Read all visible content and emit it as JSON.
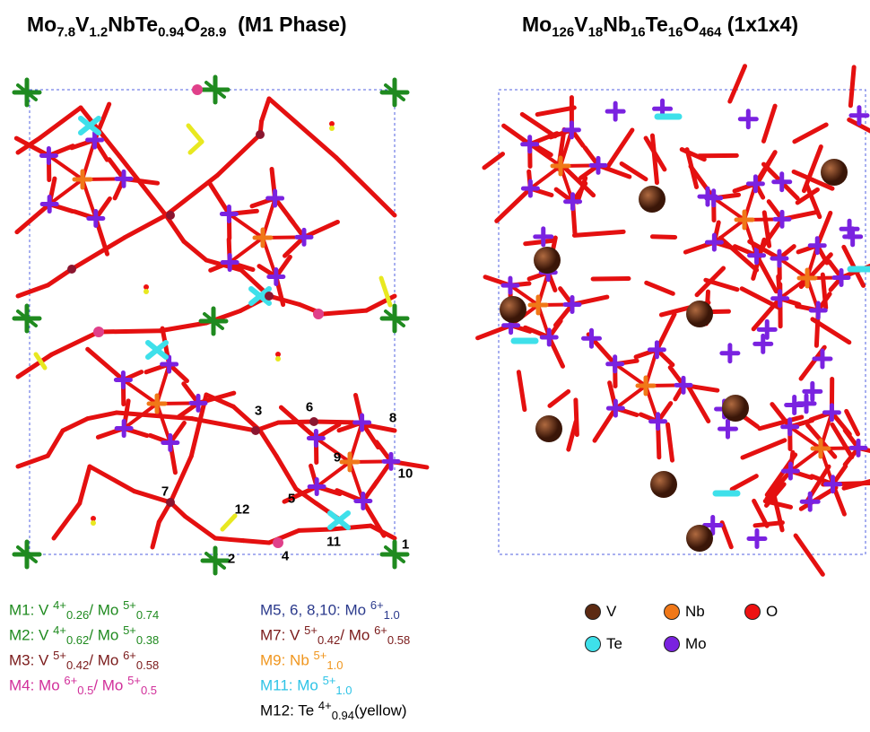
{
  "panels": [
    {
      "title": [
        {
          "text": "Mo"
        },
        {
          "sub": "7.8"
        },
        {
          "text": "V"
        },
        {
          "sub": "1.2"
        },
        {
          "text": "NbTe"
        },
        {
          "sub": "0.94"
        },
        {
          "text": "O"
        },
        {
          "sub": "28.9"
        },
        {
          "text": "  (M1 Phase)"
        }
      ],
      "site_labels": [
        "1",
        "2",
        "3",
        "4",
        "5",
        "6",
        "7",
        "8",
        "9",
        "10",
        "11",
        "12"
      ]
    },
    {
      "title": [
        {
          "text": "Mo"
        },
        {
          "sub": "126"
        },
        {
          "text": "V"
        },
        {
          "sub": "18"
        },
        {
          "text": "Nb"
        },
        {
          "sub": "16"
        },
        {
          "text": "Te"
        },
        {
          "sub": "16"
        },
        {
          "text": "O"
        },
        {
          "sub": "464"
        },
        {
          "text": " (1x1x4)"
        }
      ]
    }
  ],
  "site_legend": [
    [
      {
        "color": "#1f8a1f",
        "parts": [
          {
            "text": "M1: V "
          },
          {
            "sup": "4+"
          },
          {
            "sub": "0.26"
          },
          {
            "text": "/ Mo "
          },
          {
            "sup": "5+"
          },
          {
            "sub": "0.74"
          }
        ]
      },
      {
        "color": "#1f8a1f",
        "parts": [
          {
            "text": "M2: V "
          },
          {
            "sup": "4+"
          },
          {
            "sub": "0.62"
          },
          {
            "text": "/ Mo "
          },
          {
            "sup": "5+"
          },
          {
            "sub": "0.38"
          }
        ]
      },
      {
        "color": "#7a1a1a",
        "parts": [
          {
            "text": "M3: V "
          },
          {
            "sup": "5+"
          },
          {
            "sub": "0.42"
          },
          {
            "text": "/ Mo "
          },
          {
            "sup": "6+"
          },
          {
            "sub": "0.58"
          }
        ]
      },
      {
        "color": "#d12f9a",
        "parts": [
          {
            "text": "M4: Mo "
          },
          {
            "sup": "6+"
          },
          {
            "sub": "0.5"
          },
          {
            "text": "/ Mo "
          },
          {
            "sup": "5+"
          },
          {
            "sub": "0.5"
          }
        ]
      }
    ],
    [
      {
        "color": "#2b3a8c",
        "parts": [
          {
            "text": "M5, 6, 8,10: Mo "
          },
          {
            "sup": "6+"
          },
          {
            "sub": "1.0"
          }
        ]
      },
      {
        "color": "#7a1a1a",
        "parts": [
          {
            "text": "M7: V "
          },
          {
            "sup": "5+"
          },
          {
            "sub": "0.42"
          },
          {
            "text": "/ Mo "
          },
          {
            "sup": "6+"
          },
          {
            "sub": "0.58"
          }
        ]
      },
      {
        "color": "#f0961e",
        "parts": [
          {
            "text": "M9: Nb "
          },
          {
            "sup": "5+"
          },
          {
            "sub": "1.0"
          }
        ]
      },
      {
        "color": "#2ec3e6",
        "parts": [
          {
            "text": "M11: Mo "
          },
          {
            "sup": "5+"
          },
          {
            "sub": "1.0"
          }
        ]
      },
      {
        "color": "#000000",
        "parts": [
          {
            "text": "M12: Te "
          },
          {
            "sup": "4+"
          },
          {
            "sub": "0.94"
          },
          {
            "text": "(yellow)"
          }
        ]
      }
    ]
  ],
  "element_legend": [
    {
      "label": "V",
      "color": "#5c2a12"
    },
    {
      "label": "Nb",
      "color": "#f07818"
    },
    {
      "label": "O",
      "color": "#ee1111"
    },
    {
      "label": "Te",
      "color": "#3ee0ea"
    },
    {
      "label": "Mo",
      "color": "#7a22e0"
    }
  ]
}
